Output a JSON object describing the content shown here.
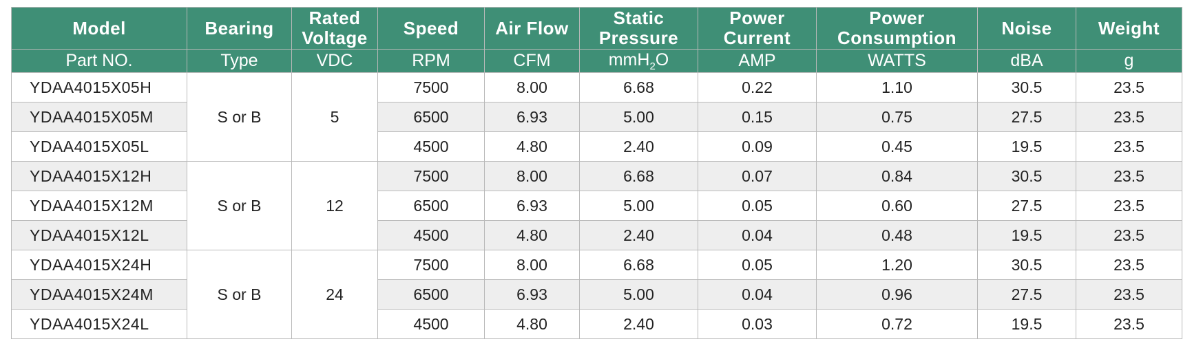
{
  "headers": {
    "model": "Model",
    "bearing": "Bearing",
    "voltage_l1": "Rated",
    "voltage_l2": "Voltage",
    "speed": "Speed",
    "airflow": "Air Flow",
    "pressure_l1": "Static",
    "pressure_l2": "Pressure",
    "current_l1": "Power",
    "current_l2": "Current",
    "consumption_l1": "Power",
    "consumption_l2": "Consumption",
    "noise": "Noise",
    "weight": "Weight"
  },
  "units": {
    "model": "Part NO.",
    "bearing": "Type",
    "voltage": "VDC",
    "speed": "RPM",
    "airflow": "CFM",
    "pressure_main": "mmH",
    "pressure_sub": "2",
    "pressure_tail": "O",
    "current": "AMP",
    "consumption": "WATTS",
    "noise": "dBA",
    "weight": "g"
  },
  "groups": [
    {
      "bearing": "S or B",
      "voltage": "5",
      "rows": [
        {
          "model": "YDAA4015X05H",
          "speed": "7500",
          "airflow": "8.00",
          "pressure": "6.68",
          "current": "0.22",
          "power": "1.10",
          "noise": "30.5",
          "weight": "23.5"
        },
        {
          "model": "YDAA4015X05M",
          "speed": "6500",
          "airflow": "6.93",
          "pressure": "5.00",
          "current": "0.15",
          "power": "0.75",
          "noise": "27.5",
          "weight": "23.5"
        },
        {
          "model": "YDAA4015X05L",
          "speed": "4500",
          "airflow": "4.80",
          "pressure": "2.40",
          "current": "0.09",
          "power": "0.45",
          "noise": "19.5",
          "weight": "23.5"
        }
      ]
    },
    {
      "bearing": "S or B",
      "voltage": "12",
      "rows": [
        {
          "model": "YDAA4015X12H",
          "speed": "7500",
          "airflow": "8.00",
          "pressure": "6.68",
          "current": "0.07",
          "power": "0.84",
          "noise": "30.5",
          "weight": "23.5"
        },
        {
          "model": "YDAA4015X12M",
          "speed": "6500",
          "airflow": "6.93",
          "pressure": "5.00",
          "current": "0.05",
          "power": "0.60",
          "noise": "27.5",
          "weight": "23.5"
        },
        {
          "model": "YDAA4015X12L",
          "speed": "4500",
          "airflow": "4.80",
          "pressure": "2.40",
          "current": "0.04",
          "power": "0.48",
          "noise": "19.5",
          "weight": "23.5"
        }
      ]
    },
    {
      "bearing": "S or B",
      "voltage": "24",
      "rows": [
        {
          "model": "YDAA4015X24H",
          "speed": "7500",
          "airflow": "8.00",
          "pressure": "6.68",
          "current": "0.05",
          "power": "1.20",
          "noise": "30.5",
          "weight": "23.5"
        },
        {
          "model": "YDAA4015X24M",
          "speed": "6500",
          "airflow": "6.93",
          "pressure": "5.00",
          "current": "0.04",
          "power": "0.96",
          "noise": "27.5",
          "weight": "23.5"
        },
        {
          "model": "YDAA4015X24L",
          "speed": "4500",
          "airflow": "4.80",
          "pressure": "2.40",
          "current": "0.03",
          "power": "0.72",
          "noise": "19.5",
          "weight": "23.5"
        }
      ]
    }
  ],
  "colors": {
    "header_bg": "#3f8f76",
    "header_text": "#ffffff",
    "row_shade": "#eeeeee",
    "grid": "#b9b9b9"
  }
}
